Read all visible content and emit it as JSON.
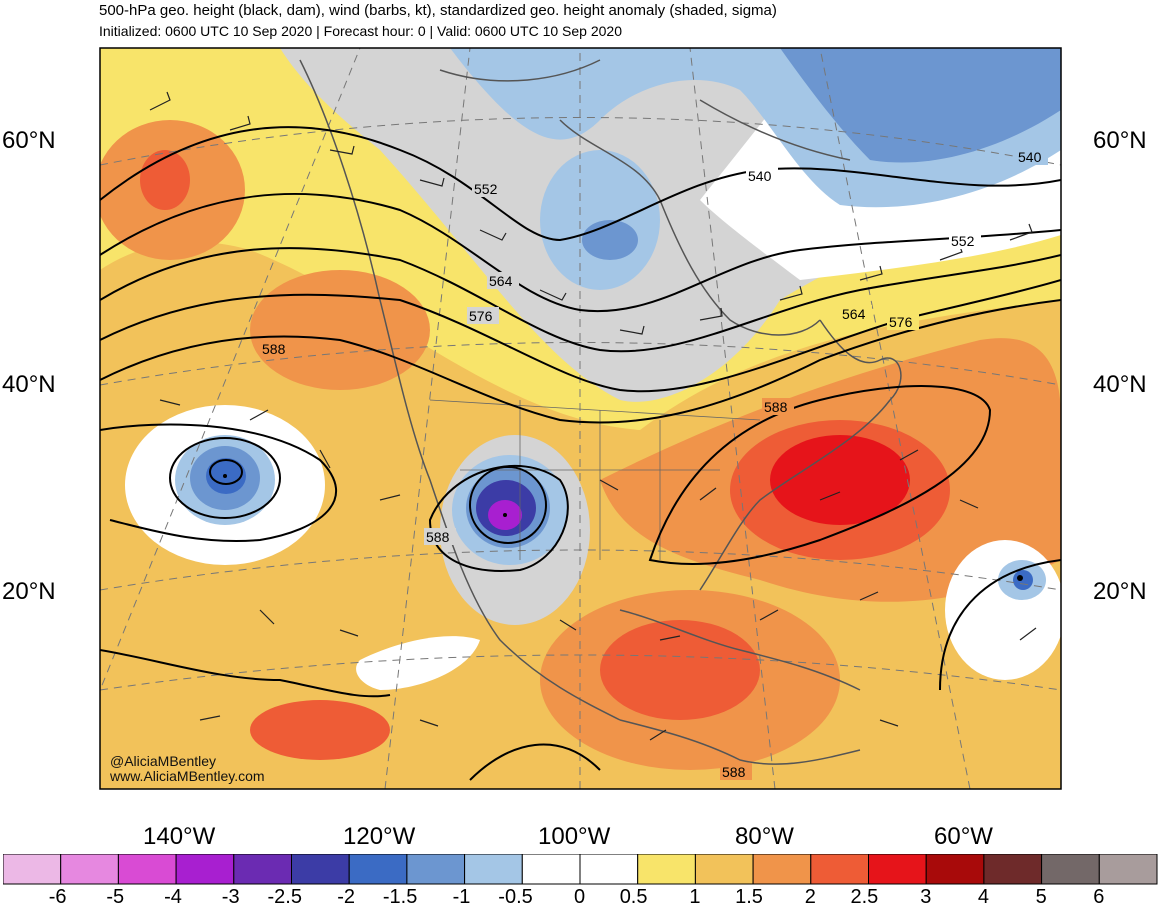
{
  "header": {
    "title": "500-hPa geo. height (black, dam), wind (barbs, kt), standardized geo. height anomaly (shaded, sigma)",
    "subtitle": "Initialized: 0600 UTC 10 Sep 2020 | Forecast hour: 0 | Valid: 0600 UTC 10 Sep 2020"
  },
  "axes": {
    "lat_labels": [
      "60°N",
      "40°N",
      "20°N"
    ],
    "lon_labels": [
      "140°W",
      "120°W",
      "100°W",
      "80°W",
      "60°W"
    ]
  },
  "contour_labels": [
    "552",
    "540",
    "564",
    "576",
    "588",
    "588",
    "564",
    "576",
    "552",
    "540",
    "588",
    "588"
  ],
  "credits": {
    "handle": "@AliciaMBentley",
    "site": "www.AliciaMBentley.com"
  },
  "colorbar": {
    "labels": [
      "-6",
      "-5",
      "-4",
      "-3",
      "-2.5",
      "-2",
      "-1.5",
      "-1",
      "-0.5",
      "0",
      "0.5",
      "1",
      "1.5",
      "2",
      "2.5",
      "3",
      "4",
      "5",
      "6"
    ],
    "colors": [
      "#ecb8e6",
      "#e688e0",
      "#d94bd4",
      "#a81fd0",
      "#6b2bb2",
      "#3c3ca6",
      "#3b6bc4",
      "#6c96d0",
      "#a4c6e6",
      "#ffffff",
      "#ffffff",
      "#f8e46a",
      "#f2c25a",
      "#f0944a",
      "#ee5c36",
      "#e6141a",
      "#a80a0a",
      "#6e2a2a",
      "#736868",
      "#a89c9c"
    ]
  }
}
